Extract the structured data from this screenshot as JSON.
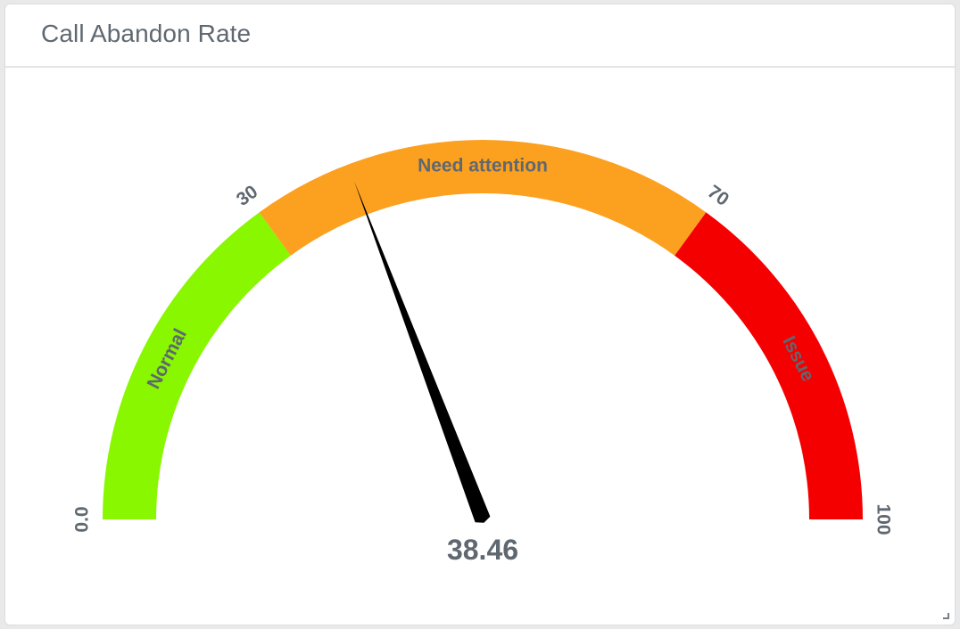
{
  "panel": {
    "title": "Call Abandon Rate"
  },
  "chart_data": {
    "type": "gauge",
    "title": "Call Abandon Rate",
    "min": 0,
    "max": 100,
    "value": 38.46,
    "value_label": "38.46",
    "ticks": [
      {
        "value": 0,
        "label": "0.0"
      },
      {
        "value": 30,
        "label": "30"
      },
      {
        "value": 70,
        "label": "70"
      },
      {
        "value": 100,
        "label": "100"
      }
    ],
    "bands": [
      {
        "from": 0,
        "to": 30,
        "label": "Normal",
        "color": "#88f700"
      },
      {
        "from": 30,
        "to": 70,
        "label": "Need attention",
        "color": "#fca020"
      },
      {
        "from": 70,
        "to": 100,
        "label": "Issue",
        "color": "#f50000"
      }
    ],
    "needle_color": "#000000",
    "text_color": "#5f6870"
  }
}
